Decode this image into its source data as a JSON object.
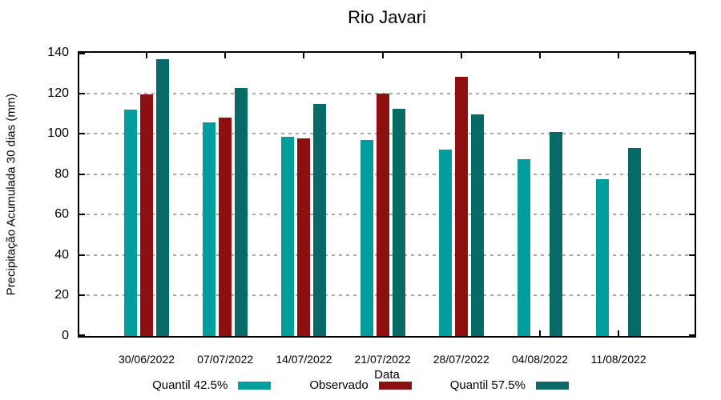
{
  "chart_data": {
    "type": "bar",
    "title": "Rio Javari",
    "xlabel": "Data",
    "ylabel": "Precipitação Acumulada 30 dias (mm)",
    "ylim": [
      0,
      140
    ],
    "yticks": [
      0,
      20,
      40,
      60,
      80,
      100,
      120,
      140
    ],
    "grid": true,
    "legend_position": "bottom",
    "categories": [
      "30/06/2022",
      "07/07/2022",
      "14/07/2022",
      "21/07/2022",
      "28/07/2022",
      "04/08/2022",
      "11/08/2022"
    ],
    "series": [
      {
        "name": "Quantil 42.5%",
        "color": "#019c9c",
        "values": [
          112,
          105.5,
          98.5,
          97,
          92,
          87.5,
          77.5
        ]
      },
      {
        "name": "Observado",
        "color": "#8e0f0f",
        "values": [
          119.5,
          108,
          97.5,
          120,
          128,
          null,
          null
        ]
      },
      {
        "name": "Quantil 57.5%",
        "color": "#076a66",
        "values": [
          137,
          122.5,
          114.5,
          112.5,
          109.5,
          101,
          93
        ]
      }
    ],
    "axis_color": "#000000",
    "gridline_color": "#a9a9a9",
    "background_color": "#ffffff"
  }
}
